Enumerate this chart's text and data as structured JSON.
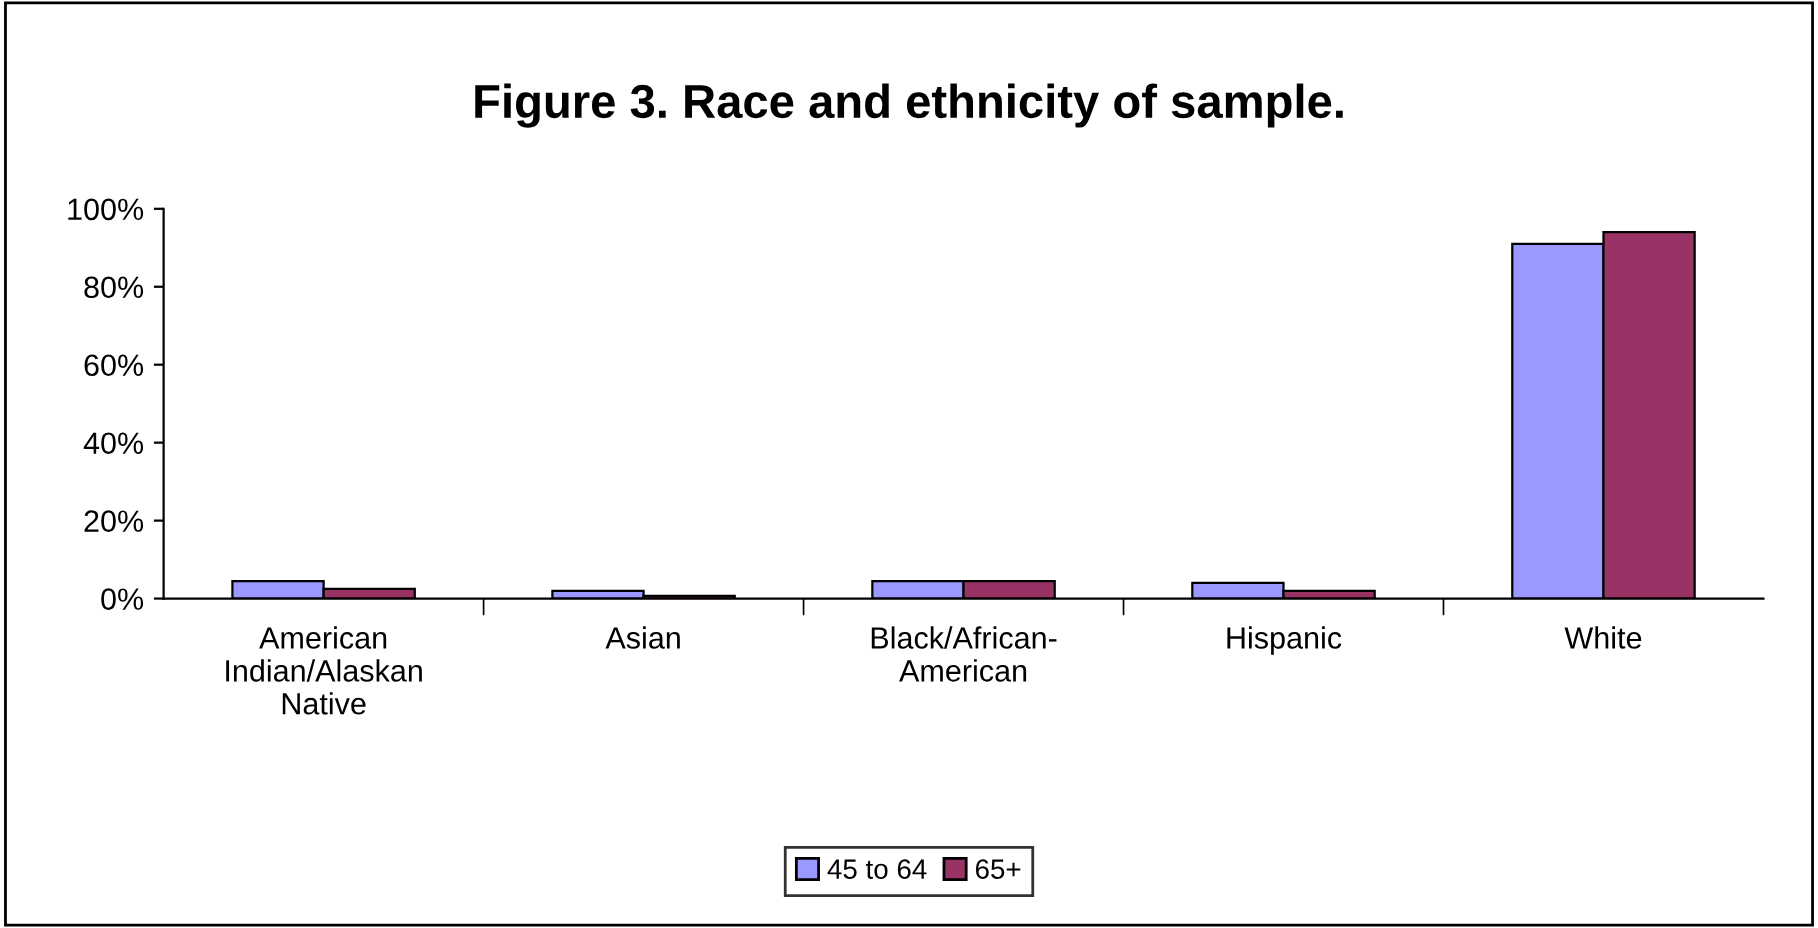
{
  "chart_data": {
    "type": "bar",
    "title": "Figure 3. Race and ethnicity of sample.",
    "categories": [
      "American\nIndian/Alaskan\nNative",
      "Asian",
      "Black/African-\nAmerican",
      "Hispanic",
      "White"
    ],
    "series": [
      {
        "name": "45 to 64",
        "color": "#9999ff",
        "values": [
          4.5,
          2,
          4.5,
          4,
          91
        ]
      },
      {
        "name": "65+",
        "color": "#993366",
        "values": [
          2.5,
          0.7,
          4.5,
          2,
          94
        ]
      }
    ],
    "ylim": [
      0,
      100
    ],
    "yticks": [
      {
        "value": 0,
        "label": "0%"
      },
      {
        "value": 20,
        "label": "20%"
      },
      {
        "value": 40,
        "label": "40%"
      },
      {
        "value": 60,
        "label": "60%"
      },
      {
        "value": 80,
        "label": "80%"
      },
      {
        "value": 100,
        "label": "100%"
      }
    ],
    "grid": false,
    "legend": "bottom"
  }
}
